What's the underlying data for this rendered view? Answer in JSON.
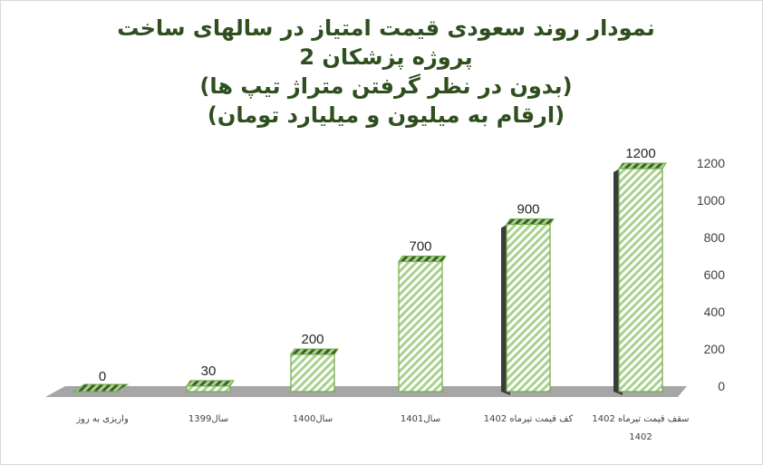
{
  "title_lines": [
    "نمودار روند سعودی قیمت امتیاز در سالهای ساخت",
    "پروژه پزشکان 2",
    "(بدون در نظر گرفتن متراژ تیپ ها)",
    "(ارقام به میلیون و میلیارد تومان)"
  ],
  "chart_data": {
    "type": "bar",
    "categories": [
      "واریزی به روز",
      "سال1399",
      "سال1400",
      "سال1401",
      "کف قیمت تیرماه 1402",
      "سقف قیمت تیرماه 1402"
    ],
    "category_lines": [
      [
        "واریزی به روز"
      ],
      [
        "سال1399"
      ],
      [
        "سال1400"
      ],
      [
        "سال1401"
      ],
      [
        "کف قیمت تیرماه 1402"
      ],
      [
        "سقف قیمت تیرماه 1402",
        "1402"
      ]
    ],
    "values": [
      0,
      30,
      200,
      700,
      900,
      1200
    ],
    "value_labels": [
      "0",
      "30",
      "200",
      "700",
      "900",
      "1200"
    ],
    "y_ticks": [
      "0",
      "200",
      "400",
      "600",
      "800",
      "1000",
      "1200"
    ],
    "ylim": [
      0,
      1200
    ],
    "axis_position": "right",
    "grid": false,
    "colors": {
      "bar_light": "#a9d18e",
      "bar_dark": "#3b3b3b",
      "bar_border": "#70ad47",
      "floor": "#a6a6a6",
      "title": "#2f4f1f"
    }
  }
}
